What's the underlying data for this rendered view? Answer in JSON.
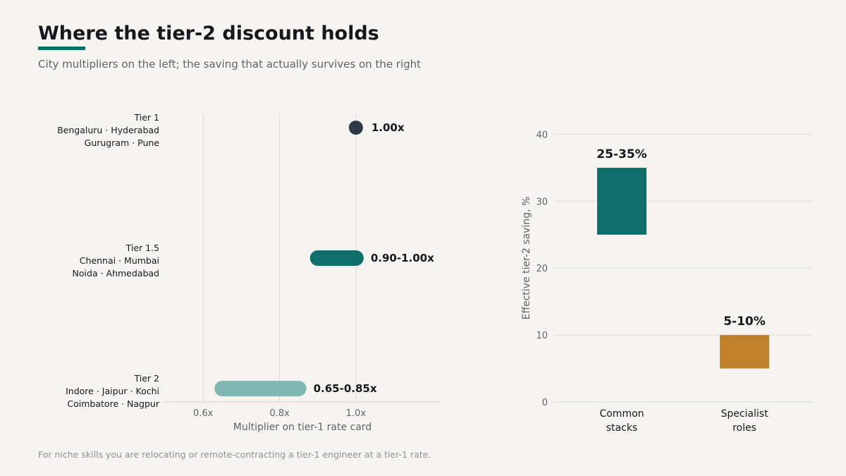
{
  "header": {
    "title": "Where the tier-2 discount holds",
    "subtitle": "City multipliers on the left; the saving that actually survives on the right"
  },
  "footnote": "For niche skills you are relocating or remote-contracting a tier-1 engineer at a tier-1 rate.",
  "colors": {
    "tier1": "#2e3a46",
    "tier1_5": "#0f6e6a",
    "tier2": "#80b7b2",
    "common": "#0f6e6a",
    "specialist": "#c0802c",
    "underline": "#0f6e6a"
  },
  "chart_data": [
    {
      "type": "range",
      "title": "",
      "xlabel": "Multiplier on tier-1 rate card",
      "xlim": [
        0.5,
        1.22
      ],
      "xticks": [
        0.6,
        0.8,
        1.0
      ],
      "xtick_labels": [
        "0.6x",
        "0.8x",
        "1.0x"
      ],
      "grid": true,
      "categories": [
        {
          "label_lines": [
            "Tier 1",
            "Bengaluru · Hyderabad",
            "Gurugram · Pune"
          ],
          "low": 1.0,
          "high": 1.0,
          "value_label": "1.00x",
          "color": "#2e3a46"
        },
        {
          "label_lines": [
            "Tier 1.5",
            "Chennai · Mumbai",
            "Noida · Ahmedabad"
          ],
          "low": 0.9,
          "high": 1.0,
          "value_label": "0.90-1.00x",
          "color": "#0f6e6a"
        },
        {
          "label_lines": [
            "Tier 2",
            "Indore · Jaipur · Kochi",
            "Coimbatore · Nagpur"
          ],
          "low": 0.65,
          "high": 0.85,
          "value_label": "0.65-0.85x",
          "color": "#80b7b2"
        }
      ]
    },
    {
      "type": "bar",
      "title": "",
      "xlabel": "",
      "ylabel": "Effective tier-2 saving, %",
      "ylim": [
        0,
        43
      ],
      "yticks": [
        0,
        10,
        20,
        30,
        40
      ],
      "ytick_labels": [
        "0",
        "10",
        "20",
        "30",
        "40"
      ],
      "grid": true,
      "categories": [
        {
          "label_lines": [
            "Common",
            "stacks"
          ],
          "low": 25,
          "high": 35,
          "value_label": "25-35%",
          "color": "#0f6e6a"
        },
        {
          "label_lines": [
            "Specialist",
            "roles"
          ],
          "low": 5,
          "high": 10,
          "value_label": "5-10%",
          "color": "#c0802c"
        }
      ]
    }
  ]
}
